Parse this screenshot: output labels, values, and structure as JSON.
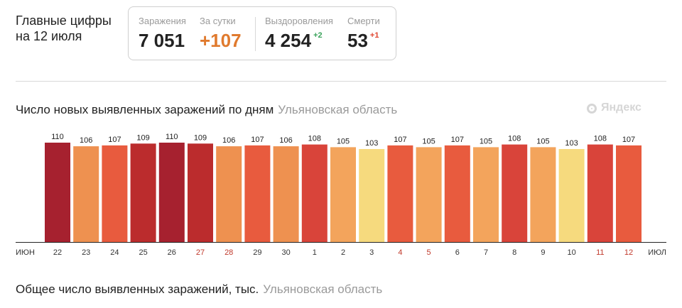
{
  "header": {
    "title_line1": "Главные цифры",
    "title_line2": "на 12 июля"
  },
  "stats": {
    "infections_label": "Заражения",
    "infections_value": "7 051",
    "daily_label": "За сутки",
    "daily_value": "+107",
    "recovered_label": "Выздоровления",
    "recovered_value": "4 254",
    "recovered_delta": "+2",
    "deaths_label": "Смерти",
    "deaths_value": "53",
    "deaths_delta": "+1"
  },
  "chart_section": {
    "title": "Число новых выявленных заражений по дням",
    "region": "Ульяновская область",
    "logo": "Яндекс"
  },
  "bottom_section": {
    "title": "Общее число выявленных заражений, тыс.",
    "region": "Ульяновская область"
  },
  "chart_data": {
    "type": "bar",
    "x_start_label": "июн",
    "x_end_label": "июл",
    "categories": [
      "22",
      "23",
      "24",
      "25",
      "26",
      "27",
      "28",
      "29",
      "30",
      "1",
      "2",
      "3",
      "4",
      "5",
      "6",
      "7",
      "8",
      "9",
      "10",
      "11",
      "12"
    ],
    "values": [
      110,
      106,
      107,
      109,
      110,
      109,
      106,
      107,
      106,
      108,
      105,
      103,
      107,
      105,
      107,
      105,
      108,
      105,
      103,
      108,
      107
    ],
    "weekend_categories": [
      "27",
      "28",
      "4",
      "5",
      "11",
      "12"
    ],
    "colors": {
      "110": "#a6212f",
      "109": "#bb2c2d",
      "108": "#d9443a",
      "107": "#e85b3e",
      "106": "#ee9150",
      "105": "#f3a45c",
      "103": "#f6da7e"
    },
    "tick_color": "#333333",
    "weekend_tick_color": "#c0392b"
  }
}
